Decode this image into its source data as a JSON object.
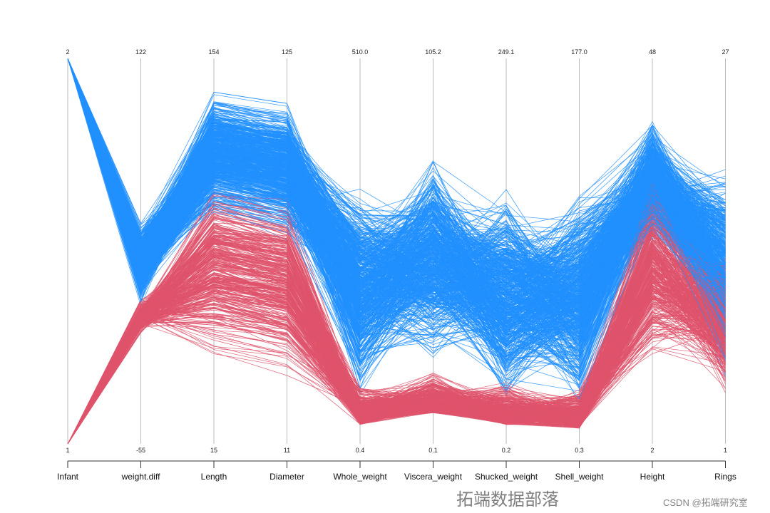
{
  "chart_data": {
    "type": "parallel_coordinates",
    "axes": [
      {
        "name": "Infant",
        "min": "1",
        "max": "2"
      },
      {
        "name": "weight.diff",
        "min": "-55",
        "max": "122"
      },
      {
        "name": "Length",
        "min": "15",
        "max": "154"
      },
      {
        "name": "Diameter",
        "min": "11",
        "max": "125"
      },
      {
        "name": "Whole_weight",
        "min": "0.4",
        "max": "510.0"
      },
      {
        "name": "Viscera_weight",
        "min": "0.1",
        "max": "105.2"
      },
      {
        "name": "Shucked_weight",
        "min": "0.2",
        "max": "249.1"
      },
      {
        "name": "Shell_weight",
        "min": "0.3",
        "max": "177.0"
      },
      {
        "name": "Height",
        "min": "2",
        "max": "48"
      },
      {
        "name": "Rings",
        "min": "1",
        "max": "27"
      }
    ],
    "color_by": "Infant",
    "groups": [
      {
        "value": "2",
        "color": "#2190FF"
      },
      {
        "value": "1",
        "color": "#DF536B"
      }
    ],
    "grid": false,
    "legend": "none"
  },
  "watermark": {
    "main": "拓端数据部落",
    "sub": "CSDN @拓端研究室"
  }
}
